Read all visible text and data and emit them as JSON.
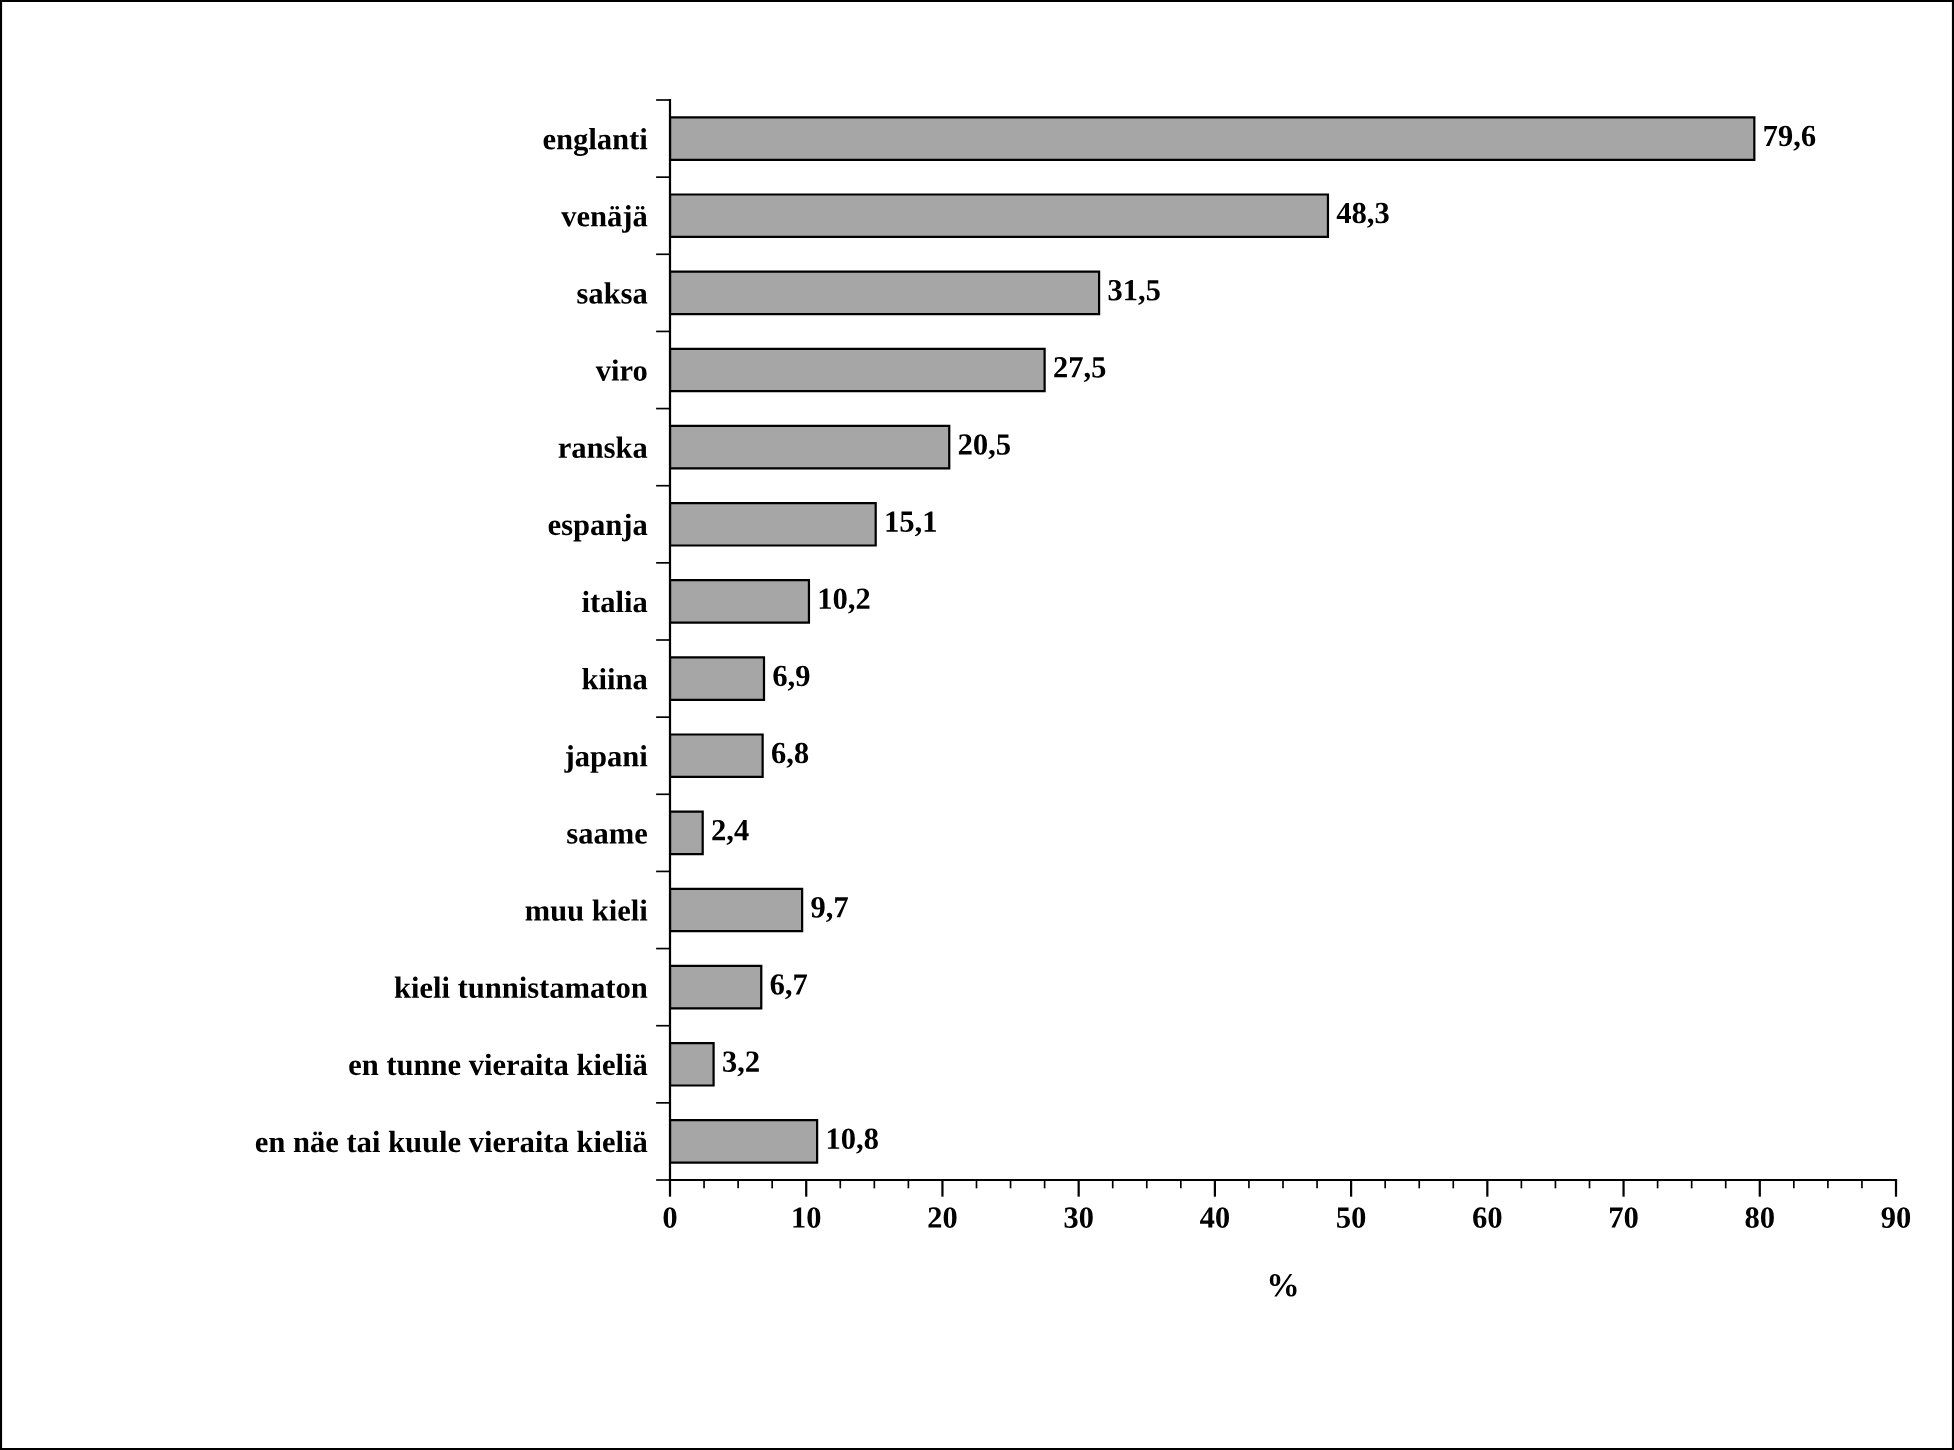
{
  "chart_data": {
    "type": "bar",
    "orientation": "horizontal",
    "xlabel": "%",
    "categories": [
      "englanti",
      "venäjä",
      "saksa",
      "viro",
      "ranska",
      "espanja",
      "italia",
      "kiina",
      "japani",
      "saame",
      "muu kieli",
      "kieli tunnistamaton",
      "en tunne vieraita kieliä",
      "en näe tai kuule vieraita kieliä"
    ],
    "values": [
      79.6,
      48.3,
      31.5,
      27.5,
      20.5,
      15.1,
      10.2,
      6.9,
      6.8,
      2.4,
      9.7,
      6.7,
      3.2,
      10.8
    ],
    "value_labels": [
      "79,6",
      "48,3",
      "31,5",
      "27,5",
      "20,5",
      "15,1",
      "10,2",
      "6,9",
      "6,8",
      "2,4",
      "9,7",
      "6,7",
      "3,2",
      "10,8"
    ],
    "color": "#a6a6a6",
    "xlim": [
      0,
      90
    ],
    "xticks": [
      0,
      10,
      20,
      30,
      40,
      50,
      60,
      70,
      80,
      90
    ],
    "grid": false,
    "legend": false
  }
}
